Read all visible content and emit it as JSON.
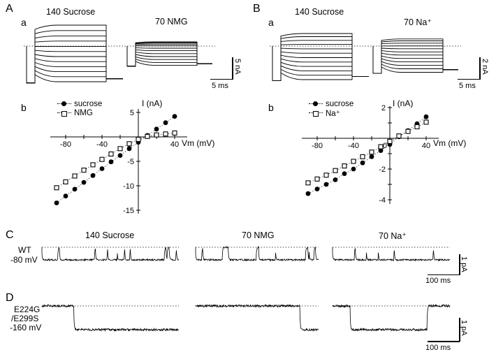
{
  "panels": {
    "A": {
      "label": "A",
      "trace_panel_label": "a",
      "iv_panel_label": "b",
      "cond_left": "140 Sucrose",
      "cond_right": "70 NMG",
      "legend": [
        "sucrose",
        "NMG"
      ],
      "ylabel": "I (nA)",
      "xlabel": "Vm (mV)",
      "scale_v": "5 nA",
      "scale_h": "5 ms"
    },
    "B": {
      "label": "B",
      "trace_panel_label": "a",
      "iv_panel_label": "b",
      "cond_left": "140 Sucrose",
      "cond_right": "70 Na⁺",
      "legend": [
        "sucrose",
        "Na⁺"
      ],
      "ylabel": "I (nA)",
      "xlabel": "Vm (mV)",
      "scale_v": "2 nA",
      "scale_h": "5 ms"
    },
    "C": {
      "label": "C",
      "conditions": [
        "140 Sucrose",
        "70 NMG",
        "70 Na⁺"
      ],
      "row": [
        "WT",
        "-80 mV"
      ],
      "scale_v": "1 pA",
      "scale_h": "100 ms"
    },
    "D": {
      "label": "D",
      "row": [
        "E224G",
        "/E299S",
        "-160 mV"
      ],
      "scale_v": "1 pA",
      "scale_h": "100 ms"
    }
  },
  "chart_data": [
    {
      "id": "iv_A",
      "type": "scatter",
      "panel": "Ab",
      "xlabel": "Vm (mV)",
      "ylabel": "I (nA)",
      "x": [
        -90,
        -80,
        -70,
        -60,
        -50,
        -40,
        -30,
        -20,
        -10,
        0,
        10,
        20,
        30,
        40
      ],
      "series": [
        {
          "name": "sucrose",
          "marker": "filled-circle",
          "values": [
            -13.5,
            -12.1,
            -10.7,
            -9.3,
            -7.9,
            -6.5,
            -5.1,
            -3.8,
            -2.4,
            -1.1,
            0.3,
            1.6,
            2.9,
            4.2
          ]
        },
        {
          "name": "NMG",
          "marker": "open-square",
          "values": [
            -10.4,
            -9.2,
            -8.0,
            -6.8,
            -5.7,
            -4.6,
            -3.5,
            -2.4,
            -1.4,
            -0.5,
            0.1,
            0.4,
            0.6,
            0.8
          ]
        }
      ],
      "xlim": [
        -95,
        50
      ],
      "ylim": [
        -15.5,
        5.5
      ],
      "xticks": [
        -80,
        -60,
        -40,
        -20,
        20,
        40
      ],
      "xtick_labels": [
        -80,
        -40,
        40
      ],
      "yticks": [
        5,
        -5,
        -10,
        -15
      ],
      "ytick_labels": [
        5,
        -5,
        -10,
        -15
      ],
      "line_style": "dotted",
      "legend_position": "top-left"
    },
    {
      "id": "iv_B",
      "type": "scatter",
      "panel": "Bb",
      "xlabel": "Vm (mV)",
      "ylabel": "I (nA)",
      "x": [
        -90,
        -80,
        -70,
        -60,
        -50,
        -40,
        -30,
        -20,
        -10,
        0,
        10,
        20,
        30,
        40
      ],
      "series": [
        {
          "name": "sucrose",
          "marker": "filled-circle",
          "values": [
            -3.6,
            -3.3,
            -3.0,
            -2.7,
            -2.3,
            -2.0,
            -1.6,
            -1.2,
            -0.8,
            -0.4,
            0.1,
            0.5,
            0.95,
            1.4
          ]
        },
        {
          "name": "Na⁺",
          "marker": "open-square",
          "values": [
            -2.9,
            -2.65,
            -2.4,
            -2.1,
            -1.8,
            -1.5,
            -1.2,
            -0.9,
            -0.55,
            -0.2,
            0.15,
            0.45,
            0.75,
            1.05
          ]
        }
      ],
      "xlim": [
        -95,
        50
      ],
      "ylim": [
        -4.3,
        2.3
      ],
      "xticks": [
        -80,
        -60,
        -40,
        -20,
        20,
        40
      ],
      "xtick_labels": [
        -80,
        -40,
        0,
        40
      ],
      "yticks": [
        2,
        1,
        -1,
        -2,
        -3,
        -4
      ],
      "ytick_labels": [
        2,
        -2,
        -4
      ],
      "line_style": "dotted",
      "legend_position": "top-left"
    },
    {
      "id": "family_A",
      "type": "line-family",
      "panel": "Aa",
      "units": "nA",
      "zero_line": "dotted",
      "families": [
        {
          "condition": "140 Sucrose",
          "pre_level": -8.8,
          "tail_level": -7.8,
          "steps": [
            -8.5,
            -7.3,
            -6.1,
            -4.9,
            -3.7,
            -2.5,
            -1.3,
            -0.1,
            1.2,
            2.4,
            3.7,
            5.0
          ]
        },
        {
          "condition": "70 NMG",
          "pre_level": -4.8,
          "tail_level": -4.2,
          "steps": [
            -4.6,
            -3.9,
            -3.2,
            -2.5,
            -1.8,
            -1.1,
            -0.5,
            0.1,
            0.45,
            0.7,
            0.88,
            1.0
          ]
        }
      ],
      "scalebar": {
        "current": "5 nA",
        "time": "5 ms"
      }
    },
    {
      "id": "family_B",
      "type": "line-family",
      "panel": "Ba",
      "units": "nA",
      "zero_line": "dotted",
      "families": [
        {
          "condition": "140 Sucrose",
          "pre_level": -3.3,
          "tail_level": -2.9,
          "steps": [
            -3.2,
            -2.78,
            -2.36,
            -1.94,
            -1.52,
            -1.1,
            -0.68,
            -0.26,
            0.16,
            0.55,
            0.9,
            1.2
          ]
        },
        {
          "condition": "70 Na⁺",
          "pre_level": -2.6,
          "tail_level": -2.25,
          "steps": [
            -2.5,
            -2.17,
            -1.84,
            -1.51,
            -1.18,
            -0.85,
            -0.55,
            -0.25,
            0.02,
            0.28,
            0.5,
            0.68
          ]
        }
      ],
      "scalebar": {
        "current": "2 nA",
        "time": "5 ms"
      }
    },
    {
      "id": "channels_C",
      "type": "single-channel",
      "panel": "C",
      "row_label": "WT -80 mV",
      "units": "pA",
      "scalebar": {
        "current": "1 pA",
        "time": "100 ms"
      },
      "traces": [
        {
          "condition": "140 Sucrose",
          "seed": 7,
          "p_close": 0.045,
          "p_open": 0.3,
          "amplitude_pA": 1,
          "noise": 2.3
        },
        {
          "condition": "70 NMG",
          "seed": 19,
          "p_close": 0.02,
          "p_open": 0.26,
          "amplitude_pA": 1,
          "noise": 2.3
        },
        {
          "condition": "70 Na⁺",
          "seed": 29,
          "p_close": 0.024,
          "p_open": 0.3,
          "amplitude_pA": 1,
          "noise": 2.3
        }
      ]
    },
    {
      "id": "channels_D",
      "type": "single-channel",
      "panel": "D",
      "row_label": "E224G/E299S -160 mV",
      "units": "pA",
      "scalebar": {
        "current": "1 pA",
        "time": "100 ms"
      },
      "traces": [
        {
          "condition": "140 Sucrose",
          "seed": 101,
          "p_close": 0.01,
          "p_open": 0.009,
          "amplitude_pA": 1,
          "noise": 3.2
        },
        {
          "condition": "70 NMG",
          "seed": 57,
          "p_close": 0.01,
          "p_open": 0.009,
          "amplitude_pA": 1,
          "noise": 3.2
        },
        {
          "condition": "70 Na⁺",
          "seed": 83,
          "p_close": 0.011,
          "p_open": 0.009,
          "amplitude_pA": 1,
          "noise": 3.2
        }
      ]
    }
  ]
}
